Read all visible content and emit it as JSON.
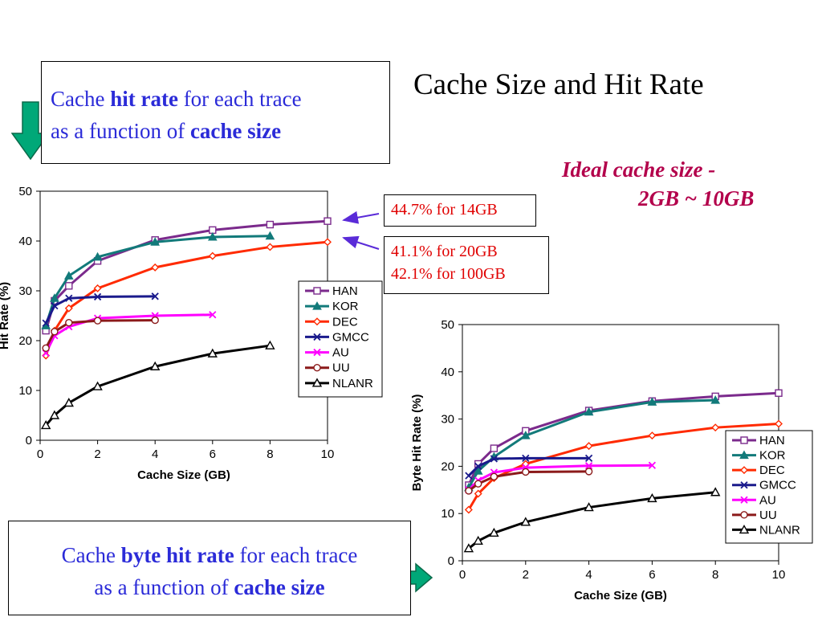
{
  "slide": {
    "title": "Cache Size and Hit Rate",
    "top_box": {
      "line1_a": "Cache ",
      "line1_b": "hit rate",
      "line1_c": " for each trace",
      "line2_a": "as a function of ",
      "line2_b": "cache size"
    },
    "bottom_box": {
      "line1_a": "Cache ",
      "line1_b": "byte hit rate",
      "line1_c": " for each trace",
      "line2_a": "as a function of ",
      "line2_b": "cache size"
    },
    "ideal_line1": "Ideal cache size -",
    "ideal_line2": "2GB ~  10GB",
    "note1": "44.7% for 14GB",
    "note2_line1": "41.1% for 20GB",
    "note2_line2": "42.1% for 100GB",
    "colors": {
      "blue_text": "#2b2bd8",
      "red_text": "#e00000",
      "magenta_text": "#b3004b",
      "arrow_green": "#00a878",
      "pointer_arrow": "#5a2bd8"
    }
  },
  "chart_data": [
    {
      "type": "line",
      "xlabel": "Cache Size (GB)",
      "ylabel": "Hit Rate (%)",
      "xlim": [
        0,
        10
      ],
      "ylim": [
        0,
        50
      ],
      "xticks": [
        0,
        2,
        4,
        6,
        8,
        10
      ],
      "yticks": [
        0,
        10,
        20,
        30,
        40,
        50
      ],
      "grid": false,
      "legend": "right-inside",
      "series": [
        {
          "name": "HAN",
          "color": "#7b2a8c",
          "marker": "square",
          "x": [
            0.2,
            0.5,
            1,
            2,
            4,
            6,
            8,
            10
          ],
          "y": [
            22.0,
            28.0,
            31.0,
            36.0,
            40.2,
            42.2,
            43.3,
            44.0
          ]
        },
        {
          "name": "KOR",
          "color": "#127a7a",
          "marker": "triangle-filled",
          "x": [
            0.2,
            0.5,
            1,
            2,
            4,
            6,
            8
          ],
          "y": [
            23.0,
            28.5,
            33.0,
            36.8,
            39.8,
            40.8,
            41.0
          ]
        },
        {
          "name": "DEC",
          "color": "#ff2a00",
          "marker": "diamond",
          "x": [
            0.2,
            0.5,
            1,
            2,
            4,
            6,
            8,
            10
          ],
          "y": [
            17.0,
            22.0,
            26.5,
            30.5,
            34.7,
            37.0,
            38.8,
            39.8
          ]
        },
        {
          "name": "GMCC",
          "color": "#1a1a8c",
          "marker": "x",
          "x": [
            0.2,
            0.5,
            1,
            2,
            4
          ],
          "y": [
            23.5,
            27.0,
            28.5,
            28.8,
            28.9
          ]
        },
        {
          "name": "AU",
          "color": "#ff00ff",
          "marker": "x",
          "x": [
            0.2,
            0.5,
            1,
            2,
            4,
            6
          ],
          "y": [
            17.5,
            21.0,
            22.8,
            24.5,
            25.0,
            25.2
          ]
        },
        {
          "name": "UU",
          "color": "#8b1a1a",
          "marker": "circle",
          "x": [
            0.2,
            0.5,
            1,
            2,
            4
          ],
          "y": [
            18.5,
            21.8,
            23.6,
            24.0,
            24.1
          ]
        },
        {
          "name": "NLANR",
          "color": "#000000",
          "marker": "triangle",
          "x": [
            0.2,
            0.5,
            1,
            2,
            4,
            6,
            8
          ],
          "y": [
            3.0,
            5.0,
            7.5,
            10.8,
            14.8,
            17.4,
            19.0
          ]
        }
      ]
    },
    {
      "type": "line",
      "xlabel": "Cache Size (GB)",
      "ylabel": "Byte Hit Rate (%)",
      "xlim": [
        0,
        10
      ],
      "ylim": [
        0,
        50
      ],
      "xticks": [
        0,
        2,
        4,
        6,
        8,
        10
      ],
      "yticks": [
        0,
        10,
        20,
        30,
        40,
        50
      ],
      "grid": false,
      "legend": "right-inside",
      "series": [
        {
          "name": "HAN",
          "color": "#7b2a8c",
          "marker": "square",
          "x": [
            0.2,
            0.5,
            1,
            2,
            4,
            6,
            8,
            10
          ],
          "y": [
            16.0,
            20.5,
            23.8,
            27.5,
            31.8,
            33.8,
            34.8,
            35.5
          ]
        },
        {
          "name": "KOR",
          "color": "#127a7a",
          "marker": "triangle-filled",
          "x": [
            0.2,
            0.5,
            1,
            2,
            4,
            6,
            8
          ],
          "y": [
            15.5,
            19.0,
            22.0,
            26.5,
            31.5,
            33.6,
            34.0
          ]
        },
        {
          "name": "DEC",
          "color": "#ff2a00",
          "marker": "diamond",
          "x": [
            0.2,
            0.5,
            1,
            2,
            4,
            6,
            8,
            10
          ],
          "y": [
            10.8,
            14.2,
            17.5,
            20.5,
            24.3,
            26.5,
            28.2,
            29.0
          ]
        },
        {
          "name": "GMCC",
          "color": "#1a1a8c",
          "marker": "x",
          "x": [
            0.2,
            0.5,
            1,
            2,
            4
          ],
          "y": [
            18.0,
            20.0,
            21.6,
            21.7,
            21.7
          ]
        },
        {
          "name": "AU",
          "color": "#ff00ff",
          "marker": "x",
          "x": [
            0.2,
            0.5,
            1,
            2,
            4,
            6
          ],
          "y": [
            15.0,
            17.0,
            18.7,
            19.7,
            20.1,
            20.2
          ]
        },
        {
          "name": "UU",
          "color": "#8b1a1a",
          "marker": "circle",
          "x": [
            0.2,
            0.5,
            1,
            2,
            4
          ],
          "y": [
            14.8,
            16.3,
            17.8,
            18.8,
            18.9
          ]
        },
        {
          "name": "NLANR",
          "color": "#000000",
          "marker": "triangle",
          "x": [
            0.2,
            0.5,
            1,
            2,
            4,
            6,
            8
          ],
          "y": [
            2.6,
            4.2,
            5.9,
            8.2,
            11.3,
            13.2,
            14.5
          ]
        }
      ]
    }
  ]
}
